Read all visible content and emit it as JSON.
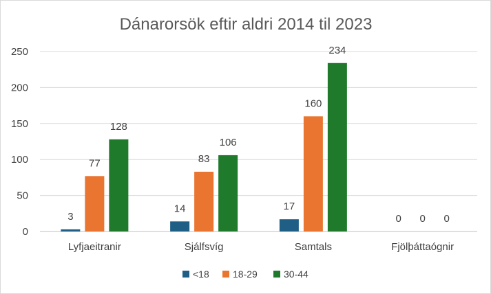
{
  "chart_data": {
    "type": "bar",
    "title": "Dánarorsök eftir aldri 2014 til 2023",
    "categories": [
      "Lyfjaeitranir",
      "Sjálfsvíg",
      "Samtals",
      "Fjölþáttaógnir"
    ],
    "series": [
      {
        "name": "<18",
        "values": [
          3,
          14,
          17,
          0
        ],
        "color": "#1f5f86"
      },
      {
        "name": "18-29",
        "values": [
          77,
          83,
          160,
          0
        ],
        "color": "#e97531"
      },
      {
        "name": "30-44",
        "values": [
          128,
          106,
          234,
          0
        ],
        "color": "#1f7a2b"
      }
    ],
    "ylim": [
      0,
      250
    ],
    "yticks": [
      0,
      50,
      100,
      150,
      200,
      250
    ],
    "grid": true,
    "legend": "bottom",
    "xlabel": "",
    "ylabel": ""
  }
}
